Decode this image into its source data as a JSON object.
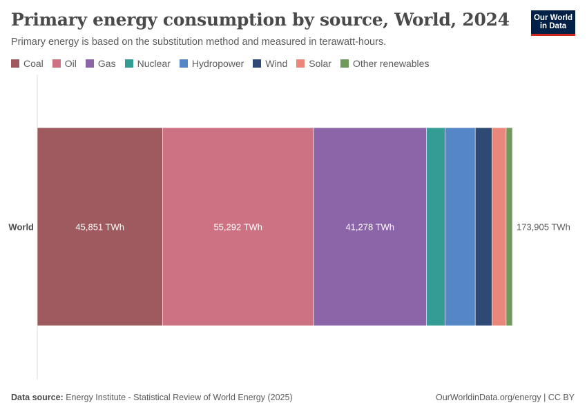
{
  "header": {
    "title": "Primary energy consumption by source, World, 2024",
    "subtitle": "Primary energy is based on the substitution method and measured in terawatt-hours.",
    "logo_line1": "Our World",
    "logo_line2": "in Data"
  },
  "legend": [
    {
      "name": "Coal",
      "color": "#9e5a5e"
    },
    {
      "name": "Oil",
      "color": "#cd7282"
    },
    {
      "name": "Gas",
      "color": "#8c65a8"
    },
    {
      "name": "Nuclear",
      "color": "#349c94"
    },
    {
      "name": "Hydropower",
      "color": "#5586c6"
    },
    {
      "name": "Wind",
      "color": "#2e4a74"
    },
    {
      "name": "Solar",
      "color": "#e8877a"
    },
    {
      "name": "Other renewables",
      "color": "#6f9a5a"
    }
  ],
  "chart_data": {
    "type": "bar",
    "orientation": "horizontal",
    "stacked": true,
    "categories": [
      "World"
    ],
    "unit": "TWh",
    "series": [
      {
        "name": "Coal",
        "values": [
          45851
        ],
        "label": "45,851 TWh"
      },
      {
        "name": "Oil",
        "values": [
          55292
        ],
        "label": "55,292 TWh"
      },
      {
        "name": "Gas",
        "values": [
          41278
        ],
        "label": "41,278 TWh"
      },
      {
        "name": "Nuclear",
        "values": [
          6800
        ]
      },
      {
        "name": "Hydropower",
        "values": [
          11100
        ]
      },
      {
        "name": "Wind",
        "values": [
          6100
        ]
      },
      {
        "name": "Solar",
        "values": [
          5200
        ]
      },
      {
        "name": "Other renewables",
        "values": [
          2300
        ]
      }
    ],
    "total_label": "173,905 TWh",
    "grid": false,
    "legend_position": "top"
  },
  "footer": {
    "source_label": "Data source:",
    "source_text": "Energy Institute - Statistical Review of World Energy (2025)",
    "credit": "OurWorldinData.org/energy | CC BY"
  }
}
